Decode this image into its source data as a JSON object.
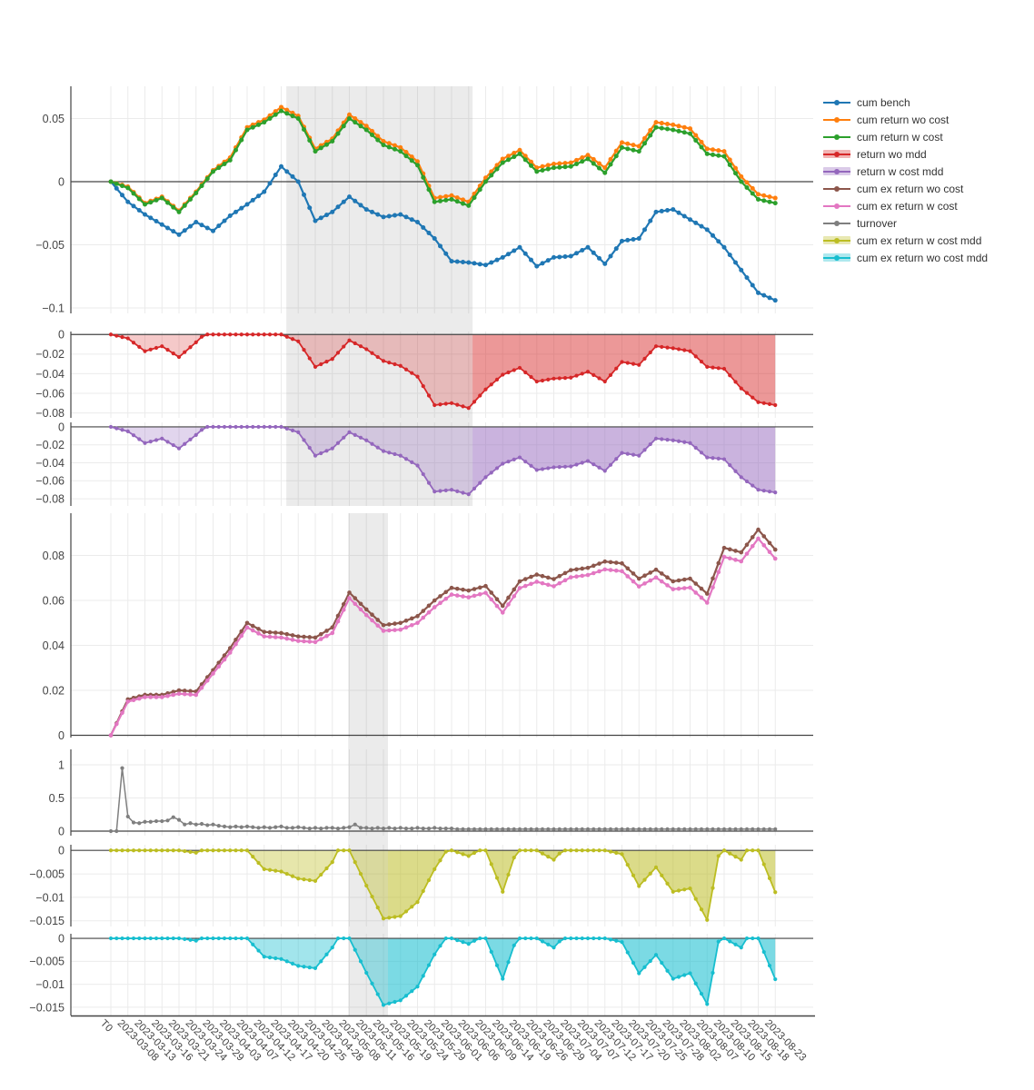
{
  "legend": {
    "position": "right-top",
    "items": [
      {
        "label": "cum bench",
        "color": "#1f77b4",
        "style": "line"
      },
      {
        "label": "cum return wo cost",
        "color": "#ff7f0e",
        "style": "line"
      },
      {
        "label": "cum return w cost",
        "color": "#2ca02c",
        "style": "line"
      },
      {
        "label": "return wo mdd",
        "color": "#d62728",
        "style": "band"
      },
      {
        "label": "return w cost mdd",
        "color": "#9467bd",
        "style": "band"
      },
      {
        "label": "cum ex return wo cost",
        "color": "#8c564b",
        "style": "line"
      },
      {
        "label": "cum ex return w cost",
        "color": "#e377c2",
        "style": "line"
      },
      {
        "label": "turnover",
        "color": "#7f7f7f",
        "style": "line"
      },
      {
        "label": "cum ex return w cost mdd",
        "color": "#bcbd22",
        "style": "band"
      },
      {
        "label": "cum ex return wo cost mdd",
        "color": "#17becf",
        "style": "band"
      }
    ]
  },
  "chart_data": {
    "type": "line",
    "title": "",
    "grid": true,
    "background": "#ffffff",
    "x_tick_labels": [
      "T0",
      "2023-03-08",
      "2023-03-13",
      "2023-03-16",
      "2023-03-21",
      "2023-03-24",
      "2023-03-29",
      "2023-04-03",
      "2023-04-07",
      "2023-04-12",
      "2023-04-17",
      "2023-04-20",
      "2023-04-25",
      "2023-04-28",
      "2023-05-08",
      "2023-05-11",
      "2023-05-16",
      "2023-05-19",
      "2023-05-24",
      "2023-05-29",
      "2023-06-01",
      "2023-06-06",
      "2023-06-09",
      "2023-06-14",
      "2023-06-19",
      "2023-06-26",
      "2023-06-29",
      "2023-07-04",
      "2023-07-07",
      "2023-07-12",
      "2023-07-17",
      "2023-07-20",
      "2023-07-25",
      "2023-07-28",
      "2023-08-02",
      "2023-08-07",
      "2023-08-10",
      "2023-08-15",
      "2023-08-18",
      "2023-08-23"
    ],
    "points_per_interval": 3,
    "mdd_bands": [
      {
        "name": "cum return max-drawdown period",
        "subplots": [
          0,
          2
        ],
        "from_x_index": 30.9,
        "to_x_index": 63.7,
        "color": "#808080",
        "opacity": 0.16
      },
      {
        "name": "cum ex return max-drawdown period",
        "subplots": [
          3,
          6
        ],
        "from_x_index": 41.8,
        "to_x_index": 48.8,
        "color": "#808080",
        "opacity": 0.16
      }
    ],
    "subplots": [
      {
        "name": "cumulative-return-vs-bench",
        "yticks": [
          0.05,
          0,
          -0.05,
          -0.1
        ],
        "ylim": [
          -0.1043,
          0.0755
        ],
        "series": [
          {
            "key": "cum_bench",
            "name": "cum bench",
            "color": "#1f77b4",
            "line_width": 2.2,
            "marker_r": 2.5,
            "values": [
              0,
              -0.016,
              -0.026,
              -0.034,
              -0.042,
              -0.032,
              -0.039,
              -0.027,
              -0.018,
              -0.008,
              0.012,
              0.0,
              -0.031,
              -0.024,
              -0.012,
              -0.022,
              -0.028,
              -0.026,
              -0.032,
              -0.045,
              -0.063,
              -0.064,
              -0.066,
              -0.06,
              -0.052,
              -0.067,
              -0.06,
              -0.059,
              -0.052,
              -0.065,
              -0.047,
              -0.045,
              -0.024,
              -0.022,
              -0.03,
              -0.038,
              -0.052,
              -0.07,
              -0.088,
              -0.094
            ]
          },
          {
            "key": "cum_return_wo_cost",
            "name": "cum return wo cost",
            "color": "#ff7f0e",
            "line_width": 2.2,
            "marker_r": 2.5,
            "values": [
              0,
              -0.004,
              -0.017,
              -0.012,
              -0.023,
              -0.008,
              0.009,
              0.019,
              0.043,
              0.049,
              0.059,
              0.052,
              0.026,
              0.034,
              0.053,
              0.044,
              0.032,
              0.027,
              0.016,
              -0.013,
              -0.011,
              -0.016,
              0.003,
              0.018,
              0.025,
              0.011,
              0.014,
              0.015,
              0.021,
              0.011,
              0.031,
              0.028,
              0.047,
              0.045,
              0.042,
              0.026,
              0.024,
              0.004,
              -0.01,
              -0.013
            ]
          },
          {
            "key": "cum_return_w_cost",
            "name": "cum return w cost",
            "color": "#2ca02c",
            "line_width": 2.2,
            "marker_r": 2.5,
            "values": [
              0,
              -0.005,
              -0.018,
              -0.013,
              -0.024,
              -0.009,
              0.008,
              0.017,
              0.041,
              0.047,
              0.056,
              0.05,
              0.024,
              0.032,
              0.05,
              0.041,
              0.029,
              0.024,
              0.013,
              -0.016,
              -0.014,
              -0.019,
              0.0,
              0.015,
              0.022,
              0.008,
              0.011,
              0.012,
              0.018,
              0.007,
              0.027,
              0.024,
              0.043,
              0.041,
              0.038,
              0.022,
              0.02,
              0.0,
              -0.014,
              -0.017
            ]
          }
        ]
      },
      {
        "name": "return-wo-mdd",
        "yticks": [
          0,
          -0.02,
          -0.04,
          -0.06,
          -0.08
        ],
        "ylim": [
          -0.085,
          0.003
        ],
        "mdd_overlay": {
          "from_x_index": 63.7,
          "to_x_index": 117,
          "extra_fill_opacity": 0.3
        },
        "series": [
          {
            "key": "return_wo_mdd",
            "name": "return wo mdd",
            "color": "#d62728",
            "line_width": 1.8,
            "marker_r": 2.1,
            "fill": "tozero",
            "fill_opacity": 0.25,
            "drawdown_of": "cum_return_wo_cost"
          }
        ]
      },
      {
        "name": "return-w-cost-mdd",
        "yticks": [
          0,
          -0.02,
          -0.04,
          -0.06,
          -0.08
        ],
        "ylim": [
          -0.088,
          0.005
        ],
        "mdd_overlay": {
          "from_x_index": 63.7,
          "to_x_index": 117,
          "extra_fill_opacity": 0.3
        },
        "series": [
          {
            "key": "return_w_cost_mdd",
            "name": "return w cost mdd",
            "color": "#9467bd",
            "line_width": 1.8,
            "marker_r": 2.1,
            "fill": "tozero",
            "fill_opacity": 0.28,
            "drawdown_of": "cum_return_w_cost"
          }
        ]
      },
      {
        "name": "cumulative-excess-return",
        "yticks": [
          0.08,
          0.06,
          0.04,
          0.02,
          0
        ],
        "ylim": [
          -0.001,
          0.0988
        ],
        "series": [
          {
            "key": "cum_ex_return_wo_cost",
            "name": "cum ex return wo cost",
            "color": "#8c564b",
            "line_width": 2.2,
            "marker_r": 2.3,
            "values": [
              0,
              0.016,
              0.018,
              0.018,
              0.02,
              0.0195,
              0.029,
              0.0388,
              0.05,
              0.046,
              0.0455,
              0.044,
              0.0435,
              0.048,
              0.0635,
              0.056,
              0.049,
              0.05,
              0.053,
              0.06,
              0.0656,
              0.0644,
              0.0664,
              0.0576,
              0.0685,
              0.0715,
              0.0695,
              0.0735,
              0.0745,
              0.0773,
              0.0765,
              0.0697,
              0.0737,
              0.0685,
              0.0697,
              0.063,
              0.0834,
              0.0814,
              0.0915,
              0.0826
            ]
          },
          {
            "key": "cum_ex_return_w_cost",
            "name": "cum ex return w cost",
            "color": "#e377c2",
            "line_width": 2.2,
            "marker_r": 2.3,
            "values": [
              0,
              0.015,
              0.017,
              0.017,
              0.0185,
              0.018,
              0.0275,
              0.0368,
              0.048,
              0.044,
              0.0435,
              0.042,
              0.0415,
              0.0455,
              0.061,
              0.0535,
              0.0465,
              0.047,
              0.05,
              0.057,
              0.0626,
              0.0614,
              0.0634,
              0.0546,
              0.0655,
              0.0683,
              0.0663,
              0.0703,
              0.0713,
              0.0738,
              0.073,
              0.0662,
              0.0702,
              0.065,
              0.0657,
              0.059,
              0.0794,
              0.0774,
              0.0875,
              0.0786
            ]
          }
        ]
      },
      {
        "name": "turnover",
        "yticks": [
          1,
          0.5,
          0
        ],
        "ylim": [
          -0.0685,
          1.233
        ],
        "series": [
          {
            "key": "turnover",
            "name": "turnover",
            "color": "#7f7f7f",
            "line_width": 1.5,
            "marker_r": 2.1,
            "values": [
              0,
              0,
              0.95,
              0.22,
              0.13,
              0.12,
              0.14,
              0.14,
              0.15,
              0.15,
              0.16,
              0.21,
              0.17,
              0.1,
              0.12,
              0.1,
              0.11,
              0.09,
              0.1,
              0.08,
              0.07,
              0.06,
              0.07,
              0.06,
              0.07,
              0.06,
              0.05,
              0.06,
              0.05,
              0.06,
              0.07,
              0.05,
              0.05,
              0.06,
              0.05,
              0.04,
              0.05,
              0.04,
              0.05,
              0.05,
              0.04,
              0.05,
              0.06,
              0.1,
              0.05,
              0.05,
              0.04,
              0.05,
              0.04,
              0.05,
              0.04,
              0.05,
              0.04,
              0.04,
              0.05,
              0.04,
              0.04,
              0.05,
              0.04,
              0.04,
              0.04,
              0.03,
              0.03,
              0.03,
              0.03,
              0.03,
              0.03,
              0.03,
              0.03,
              0.03,
              0.03,
              0.03,
              0.03,
              0.03,
              0.03,
              0.03,
              0.03,
              0.03,
              0.03,
              0.03,
              0.03,
              0.03,
              0.03,
              0.03,
              0.03,
              0.03,
              0.03,
              0.03,
              0.03,
              0.03,
              0.03,
              0.03,
              0.03,
              0.03,
              0.03,
              0.03,
              0.03,
              0.03,
              0.03,
              0.03,
              0.03,
              0.03,
              0.03,
              0.03,
              0.03,
              0.03,
              0.03,
              0.03,
              0.03,
              0.03,
              0.03,
              0.03,
              0.03,
              0.03,
              0.03,
              0.03,
              0.03,
              0.03
            ]
          }
        ]
      },
      {
        "name": "cum-ex-return-w-cost-mdd",
        "yticks": [
          0,
          -0.005,
          -0.01,
          -0.015
        ],
        "ylim": [
          -0.0162,
          0.0012
        ],
        "mdd_overlay": {
          "from_x_index": 48.8,
          "to_x_index": 117,
          "extra_fill_opacity": 0.25
        },
        "series": [
          {
            "key": "cum_ex_return_w_cost_mdd",
            "name": "cum ex return w cost mdd",
            "color": "#bcbd22",
            "line_width": 1.8,
            "marker_r": 2.1,
            "fill": "tozero",
            "fill_opacity": 0.38,
            "drawdown_of": "cum_ex_return_w_cost"
          }
        ]
      },
      {
        "name": "cum-ex-return-wo-cost-mdd",
        "yticks": [
          0,
          -0.005,
          -0.01,
          -0.015
        ],
        "ylim": [
          -0.0168,
          0.001
        ],
        "mdd_overlay": {
          "from_x_index": 48.8,
          "to_x_index": 117,
          "extra_fill_opacity": 0.28
        },
        "series": [
          {
            "key": "cum_ex_return_wo_cost_mdd",
            "name": "cum ex return wo cost mdd",
            "color": "#17becf",
            "line_width": 1.8,
            "marker_r": 2.1,
            "fill": "tozero",
            "fill_opacity": 0.4,
            "drawdown_of": "cum_ex_return_wo_cost"
          }
        ]
      }
    ]
  }
}
